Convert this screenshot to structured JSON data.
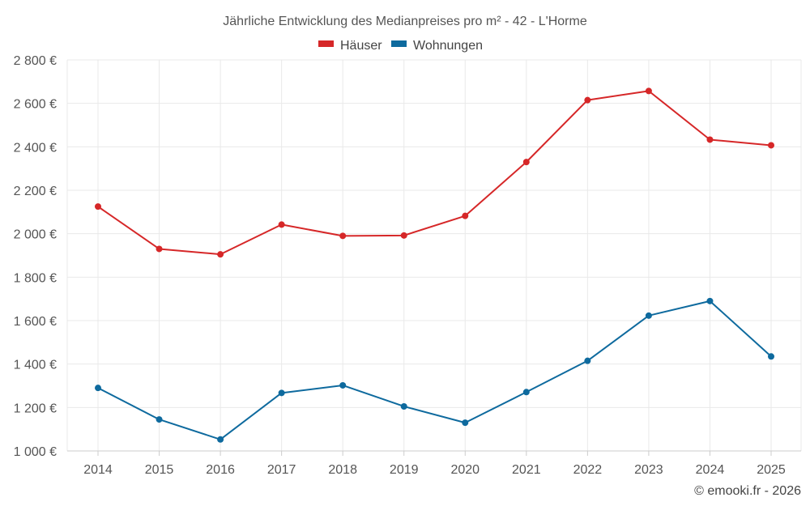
{
  "chart_data": {
    "type": "line",
    "title": "Jährliche Entwicklung des Medianpreises pro m² - 42 - L'Horme",
    "x": [
      "2014",
      "2015",
      "2016",
      "2017",
      "2018",
      "2019",
      "2020",
      "2021",
      "2022",
      "2023",
      "2024",
      "2025"
    ],
    "series": [
      {
        "name": "Häuser",
        "color": "#d62728",
        "values": [
          2125,
          1930,
          1905,
          2042,
          1990,
          1992,
          2082,
          2330,
          2615,
          2657,
          2433,
          2407
        ]
      },
      {
        "name": "Wohnungen",
        "color": "#0e6a9e",
        "values": [
          1290,
          1145,
          1053,
          1267,
          1302,
          1205,
          1130,
          1271,
          1415,
          1623,
          1690,
          1435
        ]
      }
    ],
    "ylim": [
      1000,
      2800
    ],
    "yticks": [
      1000,
      1200,
      1400,
      1600,
      1800,
      2000,
      2200,
      2400,
      2600,
      2800
    ],
    "ytick_labels": [
      "1 000 €",
      "1 200 €",
      "1 400 €",
      "1 600 €",
      "1 800 €",
      "2 000 €",
      "2 200 €",
      "2 400 €",
      "2 600 €",
      "2 800 €"
    ],
    "grid": true,
    "legend_position": "top-center",
    "credit": "© emooki.fr - 2026"
  }
}
